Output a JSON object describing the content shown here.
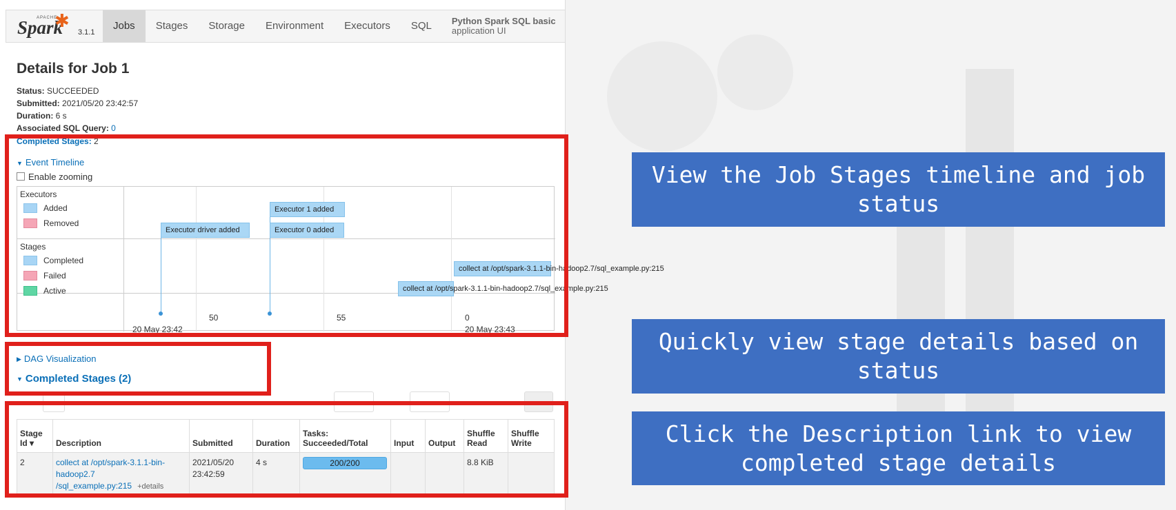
{
  "nav": {
    "logo_apache": "APACHE",
    "logo_word": "Spark",
    "version": "3.1.1",
    "tabs": [
      "Jobs",
      "Stages",
      "Storage",
      "Environment",
      "Executors",
      "SQL"
    ],
    "app_name_line1": "Python Spark SQL basic",
    "app_name_line2": "application UI"
  },
  "job": {
    "title": "Details for Job 1",
    "status_label": "Status:",
    "status_value": "SUCCEEDED",
    "submitted_label": "Submitted:",
    "submitted_value": "2021/05/20 23:42:57",
    "duration_label": "Duration:",
    "duration_value": "6 s",
    "sql_label": "Associated SQL Query:",
    "sql_value": "0",
    "completed_label": "Completed Stages:",
    "completed_value": "2"
  },
  "timeline": {
    "toggle_label": "Event Timeline",
    "zoom_label": "Enable zooming",
    "executors_heading": "Executors",
    "added_label": "Added",
    "removed_label": "Removed",
    "stages_heading": "Stages",
    "completed_label": "Completed",
    "failed_label": "Failed",
    "active_label": "Active",
    "events": {
      "executor_driver": "Executor driver added",
      "executor_1": "Executor 1 added",
      "executor_0": "Executor 0 added",
      "stage_collect_a": "collect at /opt/spark-3.1.1-bin-hadoop2.7/sql_example.py:215",
      "stage_collect_b": "collect at /opt/spark-3.1.1-bin-hadoop2.7/sql_example.py:215"
    },
    "ticks": {
      "t1": "50",
      "t2": "55",
      "t3": "0",
      "date_left": "20 May 23:42",
      "date_right": "20 May 23:43"
    }
  },
  "dag": {
    "toggle_label": "DAG Visualization"
  },
  "stages": {
    "section_title": "Completed Stages (2)",
    "headers": {
      "stage_id": "Stage Id ▾",
      "description": "Description",
      "submitted": "Submitted",
      "duration": "Duration",
      "tasks": "Tasks: Succeeded/Total",
      "input": "Input",
      "output": "Output",
      "shuffle_read": "Shuffle Read",
      "shuffle_write": "Shuffle Write"
    },
    "rows": [
      {
        "stage_id": "2",
        "description_link": "collect at /opt/spark-3.1.1-bin-hadoop2.7 /sql_example.py:215",
        "details": "+details",
        "submitted": "2021/05/20 23:42:59",
        "duration": "4 s",
        "tasks": "200/200",
        "tasks_progress": 1.0,
        "input": "",
        "output": "",
        "shuffle_read": "8.8 KiB",
        "shuffle_write": ""
      }
    ]
  },
  "callouts": {
    "c1": "View the Job Stages timeline and job status",
    "c2": "Quickly view stage details based on status",
    "c3": "Click the Description link to view completed stage details"
  },
  "colors": {
    "highlight": "#e0201b",
    "callout": "#3e6fc2",
    "link": "#0a6fb7"
  }
}
